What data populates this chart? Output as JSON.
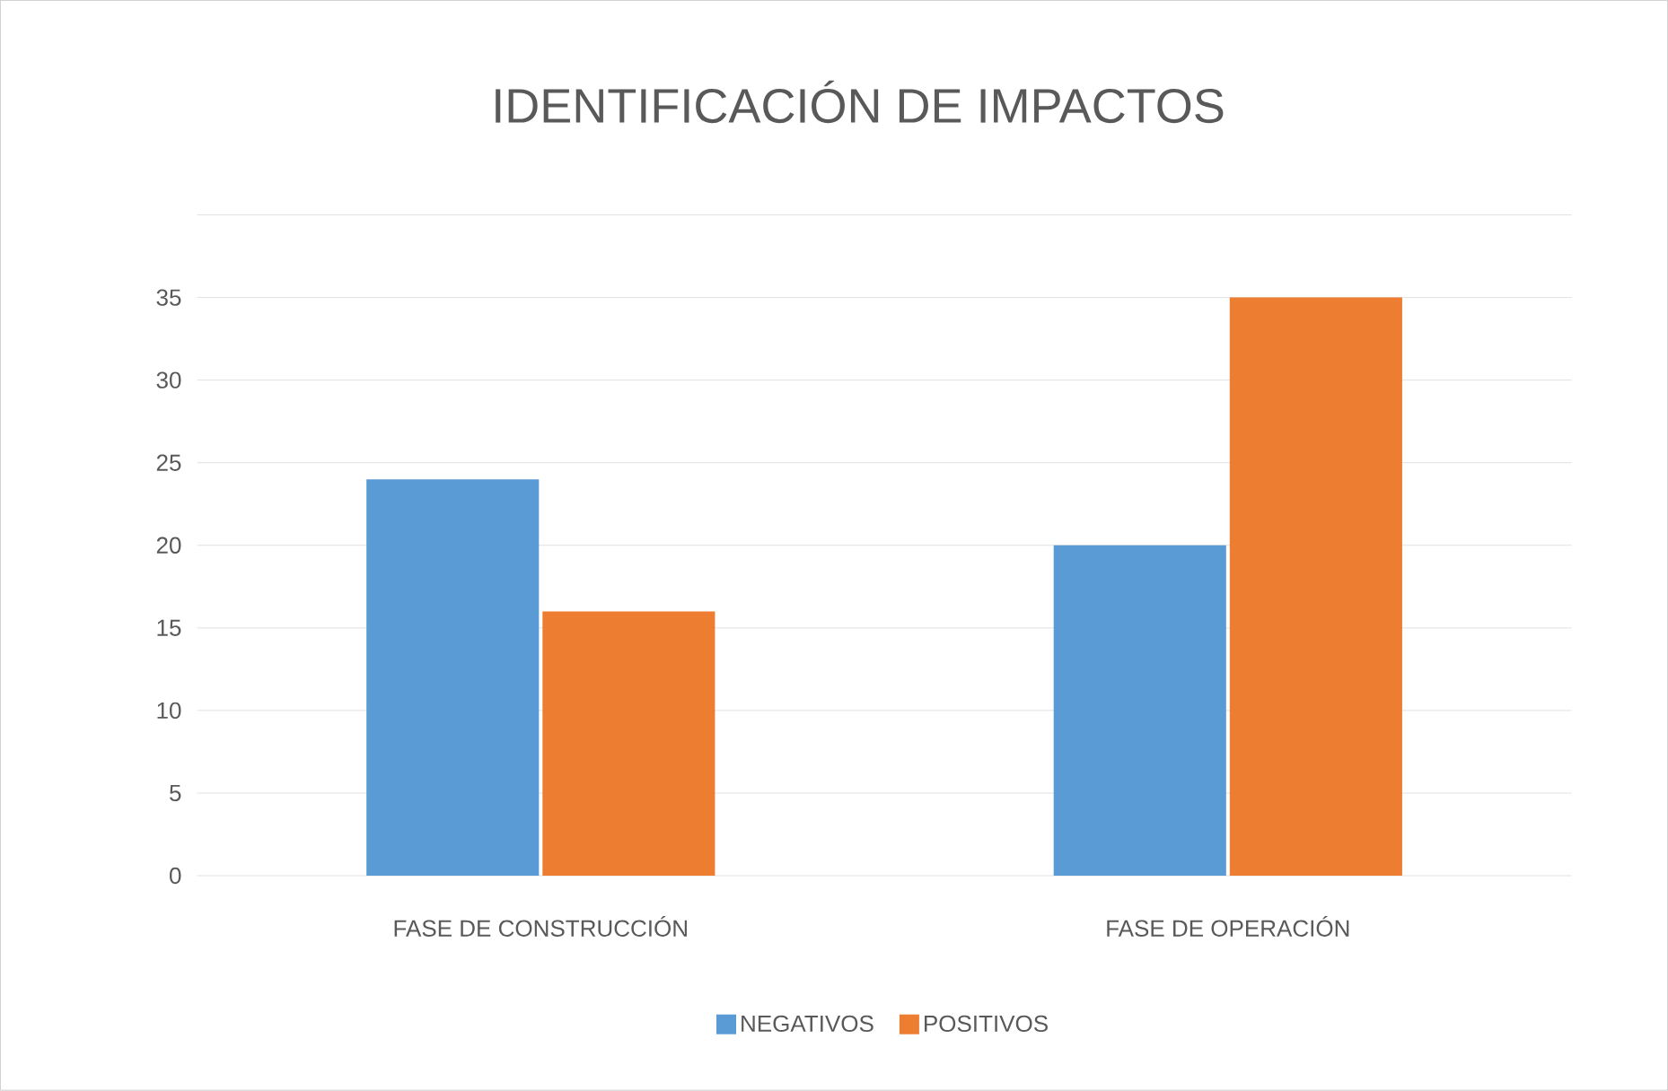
{
  "chart_data": {
    "type": "bar",
    "title": "IDENTIFICACIÓN DE IMPACTOS",
    "categories": [
      "FASE DE CONSTRUCCIÓN",
      "FASE DE OPERACIÓN"
    ],
    "series": [
      {
        "name": "NEGATIVOS",
        "color": "#5b9bd5",
        "values": [
          24,
          20
        ]
      },
      {
        "name": "POSITIVOS",
        "color": "#ed7d31",
        "values": [
          16,
          35
        ]
      }
    ],
    "ylim": [
      0,
      40
    ],
    "yticks": [
      0,
      5,
      10,
      15,
      20,
      25,
      30,
      35,
      {
        "value": 40,
        "label": null
      }
    ],
    "grid": "y",
    "legend": "bottom"
  }
}
